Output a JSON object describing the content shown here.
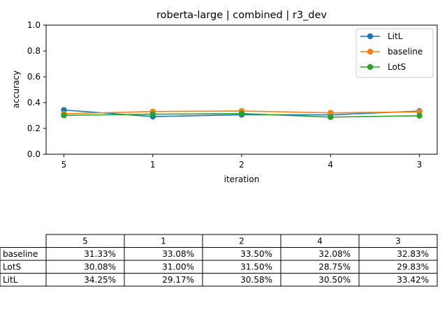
{
  "chart_data": {
    "type": "line",
    "title": "roberta-large | combined | r3_dev",
    "xlabel": "iteration",
    "ylabel": "accuracy",
    "categories": [
      "5",
      "1",
      "2",
      "4",
      "3"
    ],
    "ylim": [
      0.0,
      1.0
    ],
    "yticks": [
      "0.0",
      "0.2",
      "0.4",
      "0.6",
      "0.8",
      "1.0"
    ],
    "grid": false,
    "legend_position": "top-right",
    "series": [
      {
        "name": "LitL",
        "color": "#1f77b4",
        "values": [
          0.3425,
          0.2917,
          0.3058,
          0.305,
          0.3342
        ]
      },
      {
        "name": "baseline",
        "color": "#ff7f0e",
        "values": [
          0.3133,
          0.3308,
          0.335,
          0.3208,
          0.3283
        ]
      },
      {
        "name": "LotS",
        "color": "#2ca02c",
        "values": [
          0.3008,
          0.31,
          0.315,
          0.2875,
          0.2983
        ]
      }
    ],
    "table": {
      "columns": [
        "5",
        "1",
        "2",
        "4",
        "3"
      ],
      "rows": [
        {
          "label": "baseline",
          "cells": [
            "31.33%",
            "33.08%",
            "33.50%",
            "32.08%",
            "32.83%"
          ]
        },
        {
          "label": "LotS",
          "cells": [
            "30.08%",
            "31.00%",
            "31.50%",
            "28.75%",
            "29.83%"
          ]
        },
        {
          "label": "LitL",
          "cells": [
            "34.25%",
            "29.17%",
            "30.58%",
            "30.50%",
            "33.42%"
          ]
        }
      ]
    }
  }
}
